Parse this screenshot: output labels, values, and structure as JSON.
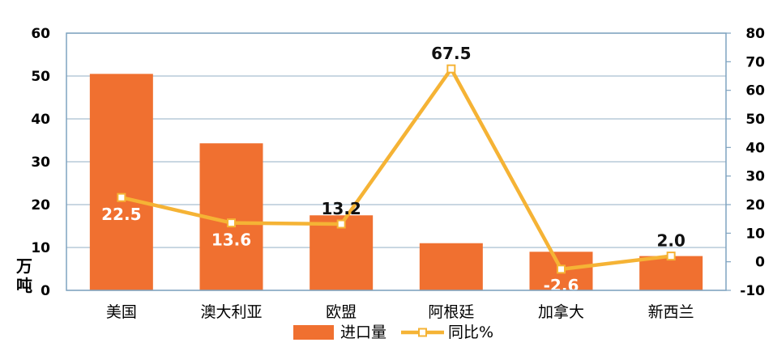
{
  "chart_data": {
    "type": "bar",
    "categories": [
      "美国",
      "澳大利亚",
      "欧盟",
      "阿根廷",
      "加拿大",
      "新西兰"
    ],
    "series": [
      {
        "name": "进口量",
        "type": "bar",
        "axis": "left",
        "values": [
          50.5,
          34.3,
          17.5,
          11.0,
          9.0,
          8.0
        ],
        "color": "#F07030"
      },
      {
        "name": "同比%",
        "type": "line",
        "axis": "right",
        "values": [
          22.5,
          13.6,
          13.2,
          67.5,
          -2.6,
          2.0
        ],
        "color": "#F5B335",
        "data_labels": [
          "22.5",
          "13.6",
          "13.2",
          "67.5",
          "-2.6",
          "2.0"
        ]
      }
    ],
    "y_left": {
      "label": "万吨",
      "min": 0,
      "max": 60,
      "ticks": [
        "0",
        "10",
        "20",
        "30",
        "40",
        "50",
        "60"
      ]
    },
    "y_right": {
      "min": -10,
      "max": 80,
      "ticks": [
        "-10",
        "0",
        "10",
        "20",
        "30",
        "40",
        "50",
        "60",
        "70",
        "80"
      ]
    },
    "grid": true,
    "legend": "bottom",
    "colors": {
      "grid": "#A9BFD0",
      "plot_border": "#7FA3C0",
      "axis_text": "#000000",
      "label_light": "#ffffff",
      "label_dark": "#111111"
    }
  }
}
